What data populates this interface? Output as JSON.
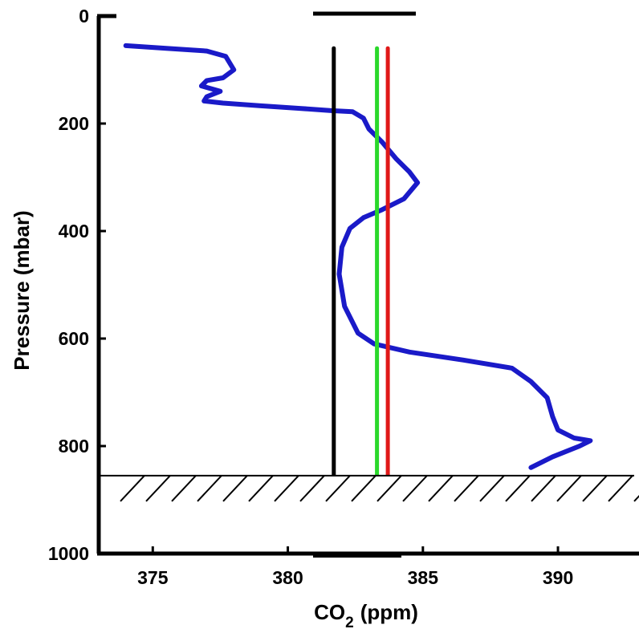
{
  "chart_data": {
    "type": "line",
    "xlabel": "CO",
    "xlabel_sub": "2",
    "xlabel_unit": "(ppm)",
    "ylabel": "Pressure (mbar)",
    "xlim": [
      373,
      393
    ],
    "ylim": [
      0,
      1000
    ],
    "y_inverted": true,
    "xticks": [
      375,
      380,
      385,
      390
    ],
    "yticks": [
      0,
      200,
      400,
      600,
      800,
      1000
    ],
    "grid": false,
    "surface_pressure": 855,
    "series": [
      {
        "color": "#1a1ac8",
        "points": [
          [
            374.0,
            55
          ],
          [
            375.5,
            60
          ],
          [
            377.0,
            65
          ],
          [
            377.7,
            75
          ],
          [
            378.0,
            100
          ],
          [
            377.6,
            115
          ],
          [
            377.0,
            120
          ],
          [
            376.8,
            130
          ],
          [
            377.5,
            140
          ],
          [
            377.0,
            150
          ],
          [
            376.9,
            158
          ],
          [
            377.6,
            162
          ],
          [
            379.0,
            167
          ],
          [
            380.5,
            172
          ],
          [
            381.6,
            176
          ],
          [
            382.4,
            178
          ],
          [
            382.8,
            190
          ],
          [
            383.0,
            210
          ],
          [
            383.5,
            235
          ],
          [
            384.0,
            265
          ],
          [
            384.5,
            290
          ],
          [
            384.8,
            310
          ],
          [
            384.3,
            340
          ],
          [
            383.5,
            360
          ],
          [
            382.8,
            375
          ],
          [
            382.3,
            395
          ],
          [
            382.0,
            430
          ],
          [
            381.9,
            480
          ],
          [
            382.1,
            540
          ],
          [
            382.6,
            590
          ],
          [
            383.2,
            610
          ],
          [
            384.5,
            625
          ],
          [
            386.5,
            640
          ],
          [
            388.3,
            655
          ],
          [
            389.0,
            680
          ],
          [
            389.6,
            710
          ],
          [
            389.8,
            745
          ],
          [
            390.0,
            770
          ],
          [
            390.6,
            785
          ],
          [
            391.2,
            790
          ],
          [
            390.8,
            800
          ],
          [
            389.8,
            820
          ],
          [
            389.0,
            840
          ]
        ]
      },
      {
        "color": "#000000",
        "points": [
          [
            381.7,
            60
          ],
          [
            381.7,
            855
          ]
        ]
      },
      {
        "color": "#2ad82a",
        "points": [
          [
            383.3,
            60
          ],
          [
            383.3,
            855
          ]
        ]
      },
      {
        "color": "#e01818",
        "points": [
          [
            383.7,
            60
          ],
          [
            383.7,
            855
          ]
        ]
      }
    ]
  }
}
